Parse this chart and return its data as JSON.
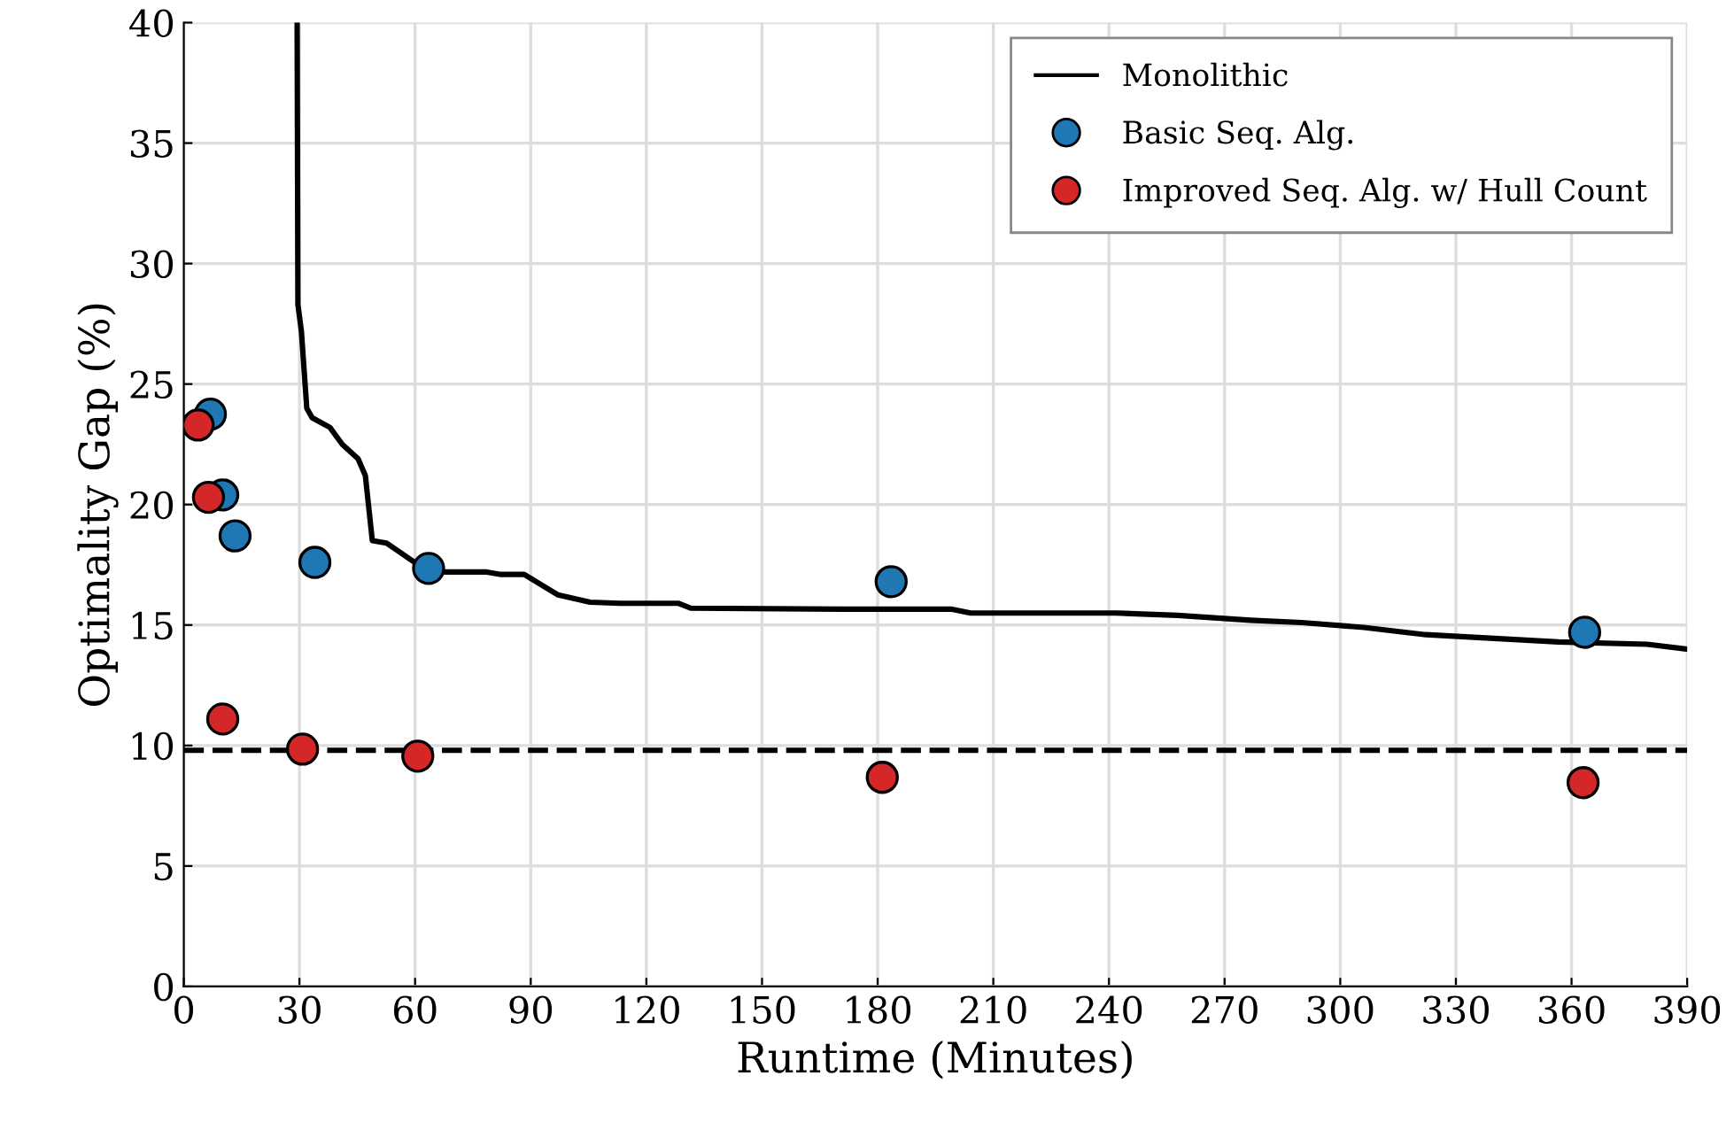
{
  "chart_data": {
    "type": "line",
    "xlabel": "Runtime (Minutes)",
    "ylabel": "Optimality Gap (%)",
    "xlim": [
      0,
      390
    ],
    "xticks": [
      0,
      30,
      60,
      90,
      120,
      150,
      180,
      210,
      240,
      270,
      300,
      330,
      360,
      390
    ],
    "ylim": [
      0,
      40
    ],
    "yticks": [
      0,
      5,
      10,
      15,
      20,
      25,
      30,
      35,
      40
    ],
    "grid": true,
    "legend": "top right",
    "series": [
      {
        "name": "Monolithic",
        "color": "#000000",
        "marker": "none",
        "line_style": "solid",
        "x": [
          29.4,
          29.6,
          30.5,
          31.9,
          33.3,
          37.9,
          41.1,
          45.2,
          47.1,
          48.9,
          52.6,
          60.8,
          65.0,
          78.6,
          82.3,
          88.3,
          97.1,
          105.4,
          113.2,
          128.4,
          131.5,
          170.6,
          199.0,
          204.1,
          241.8,
          257.8,
          276.7,
          290.0,
          306.1,
          322.2,
          356.6,
          379.6,
          390
        ],
        "values": [
          40,
          28.3,
          27.2,
          24.0,
          23.6,
          23.2,
          22.5,
          21.9,
          21.2,
          18.5,
          18.4,
          17.5,
          17.2,
          17.2,
          17.1,
          17.1,
          16.25,
          15.95,
          15.9,
          15.9,
          15.7,
          15.66,
          15.66,
          15.5,
          15.5,
          15.4,
          15.2,
          15.1,
          14.9,
          14.6,
          14.3,
          14.2,
          14.0
        ]
      },
      {
        "name": "Basic Seq. Alg.",
        "type": "scatter",
        "color": "#1f77b4",
        "marker": "circle",
        "x": [
          6.9,
          10.1,
          13.3,
          34.0,
          63.5,
          183.5,
          363.4
        ],
        "values": [
          23.75,
          20.4,
          18.7,
          17.6,
          17.35,
          16.8,
          14.7
        ]
      },
      {
        "name": "Improved Seq. Alg. w/ Hull Count",
        "type": "scatter",
        "color": "#d62728",
        "marker": "circle",
        "x": [
          3.7,
          6.4,
          10.1,
          30.8,
          60.7,
          181.2,
          363.0
        ],
        "values": [
          23.3,
          20.3,
          11.1,
          9.85,
          9.56,
          8.68,
          8.46
        ]
      }
    ],
    "ref_lines": [
      {
        "axis": "y",
        "value": 9.8,
        "color": "#000000",
        "line_style": "dashed"
      }
    ]
  }
}
